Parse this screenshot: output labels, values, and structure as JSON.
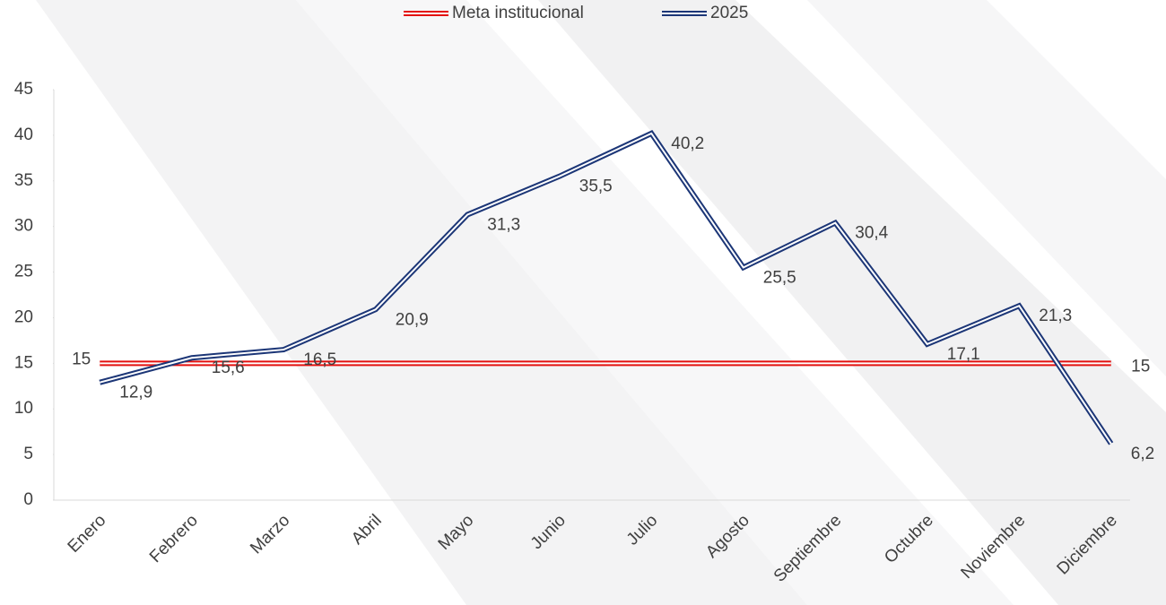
{
  "chart_data": {
    "type": "line",
    "categories": [
      "Enero",
      "Febrero",
      "Marzo",
      "Abril",
      "Mayo",
      "Junio",
      "Julio",
      "Agosto",
      "Septiembre",
      "Octubre",
      "Noviembre",
      "Diciembre"
    ],
    "series": [
      {
        "name": "Meta institucional",
        "color": "#e3100f",
        "values": [
          15,
          15,
          15,
          15,
          15,
          15,
          15,
          15,
          15,
          15,
          15,
          15
        ],
        "value_labels": [
          "15",
          null,
          null,
          null,
          null,
          null,
          null,
          null,
          null,
          null,
          null,
          "15"
        ]
      },
      {
        "name": "2025",
        "color": "#1c3677",
        "values": [
          12.9,
          15.6,
          16.5,
          20.9,
          31.3,
          35.5,
          40.2,
          25.5,
          30.4,
          17.1,
          21.3,
          6.2
        ],
        "value_labels": [
          "12,9",
          "15,6",
          "16,5",
          "20,9",
          "31,3",
          "35,5",
          "40,2",
          "25,5",
          "30,4",
          "17,1",
          "21,3",
          "6,2"
        ]
      }
    ],
    "ylim": [
      0,
      45
    ],
    "yticks": [
      0,
      5,
      10,
      15,
      20,
      25,
      30,
      35,
      40,
      45
    ],
    "legend": "top"
  }
}
